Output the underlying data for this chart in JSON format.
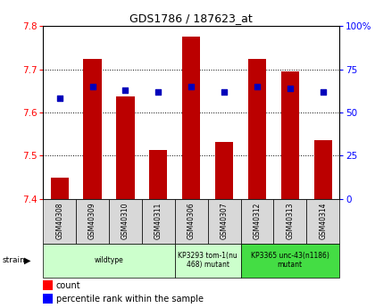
{
  "title": "GDS1786 / 187623_at",
  "samples": [
    "GSM40308",
    "GSM40309",
    "GSM40310",
    "GSM40311",
    "GSM40306",
    "GSM40307",
    "GSM40312",
    "GSM40313",
    "GSM40314"
  ],
  "counts": [
    7.448,
    7.725,
    7.638,
    7.513,
    7.775,
    7.532,
    7.725,
    7.695,
    7.535
  ],
  "percentiles": [
    58,
    65,
    63,
    62,
    65,
    62,
    65,
    64,
    62
  ],
  "ylim_left": [
    7.4,
    7.8
  ],
  "ylim_right": [
    0,
    100
  ],
  "yticks_left": [
    7.4,
    7.5,
    7.6,
    7.7,
    7.8
  ],
  "yticks_right": [
    0,
    25,
    50,
    75,
    100
  ],
  "bar_color": "#bb0000",
  "dot_color": "#0000bb",
  "bar_width": 0.55,
  "groups": [
    {
      "label": "wildtype",
      "start": 0,
      "end": 4,
      "color": "#ccffcc"
    },
    {
      "label": "KP3293 tom-1(nu\n468) mutant",
      "start": 4,
      "end": 6,
      "color": "#ccffcc"
    },
    {
      "label": "KP3365 unc-43(n1186)\nmutant",
      "start": 6,
      "end": 9,
      "color": "#44dd44"
    }
  ],
  "legend_count_label": "count",
  "legend_pct_label": "percentile rank within the sample",
  "strain_label": "strain",
  "base_value": 7.4
}
